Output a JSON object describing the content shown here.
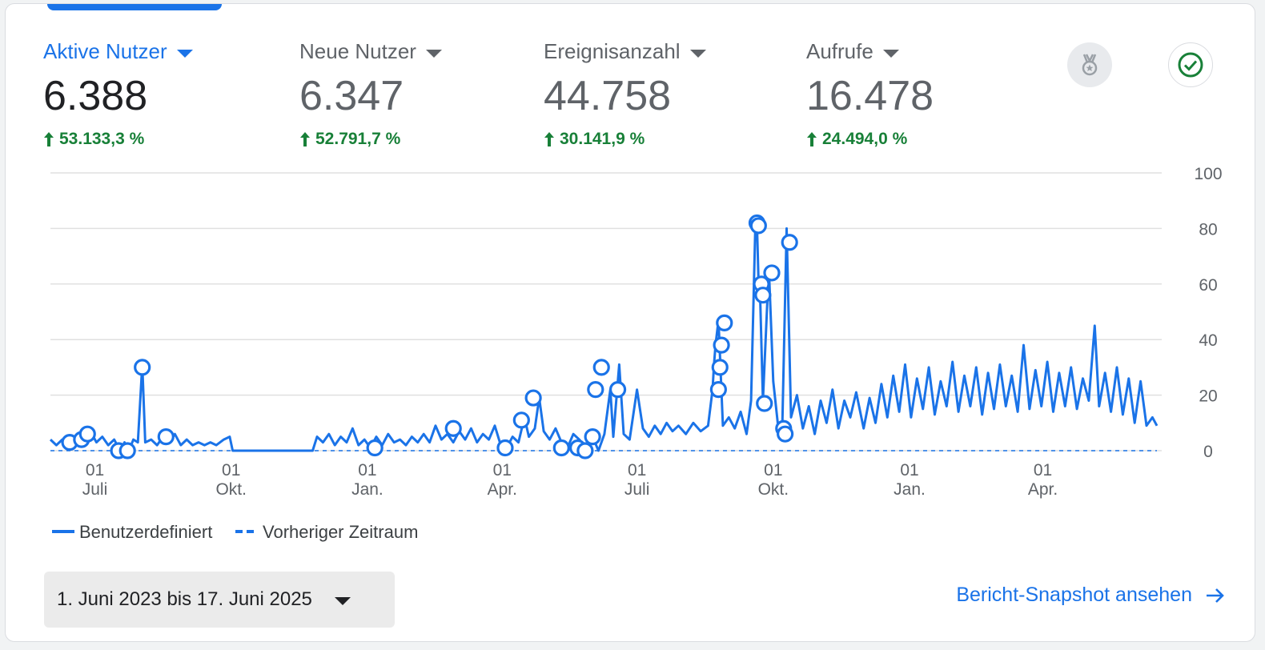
{
  "metrics": [
    {
      "label": "Aktive Nutzer",
      "value": "6.388",
      "change": "53.133,3 %"
    },
    {
      "label": "Neue Nutzer",
      "value": "6.347",
      "change": "52.791,7 %"
    },
    {
      "label": "Ereignisanzahl",
      "value": "44.758",
      "change": "30.141,9 %"
    },
    {
      "label": "Aufrufe",
      "value": "16.478",
      "change": "24.494,0 %"
    }
  ],
  "icons": {
    "badge": "medal-icon",
    "check": "check-circle-icon",
    "arrow": "arrow-right-icon",
    "trend": "arrow-up-icon"
  },
  "colors": {
    "primary": "#1a73e8",
    "positive": "#188038",
    "grid": "#e0e0e0"
  },
  "chart_data": {
    "type": "line",
    "ylim": [
      0,
      100
    ],
    "yticks": [
      "0",
      "20",
      "40",
      "60",
      "80",
      "100"
    ],
    "xlim": [
      "2023-06-01",
      "2025-06-17"
    ],
    "xticks": [
      {
        "date": "2023-07-01",
        "day": "01",
        "month": "Juli"
      },
      {
        "date": "2023-10-01",
        "day": "01",
        "month": "Okt."
      },
      {
        "date": "2024-01-01",
        "day": "01",
        "month": "Jan."
      },
      {
        "date": "2024-04-01",
        "day": "01",
        "month": "Apr."
      },
      {
        "date": "2024-07-01",
        "day": "01",
        "month": "Juli"
      },
      {
        "date": "2024-10-01",
        "day": "01",
        "month": "Okt."
      },
      {
        "date": "2025-01-01",
        "day": "01",
        "month": "Jan."
      },
      {
        "date": "2025-04-01",
        "day": "01",
        "month": "Apr."
      }
    ],
    "series": [
      {
        "name": "Benutzerdefiniert",
        "style": "solid",
        "points": [
          [
            "2023-06-01",
            4
          ],
          [
            "2023-06-05",
            2
          ],
          [
            "2023-06-09",
            4
          ],
          [
            "2023-06-13",
            2
          ],
          [
            "2023-06-16",
            4
          ],
          [
            "2023-06-20",
            6
          ],
          [
            "2023-06-24",
            4
          ],
          [
            "2023-06-28",
            7
          ],
          [
            "2023-07-02",
            3
          ],
          [
            "2023-07-06",
            5
          ],
          [
            "2023-07-10",
            2
          ],
          [
            "2023-07-14",
            4
          ],
          [
            "2023-07-18",
            0
          ],
          [
            "2023-07-21",
            3
          ],
          [
            "2023-07-24",
            0
          ],
          [
            "2023-07-27",
            4
          ],
          [
            "2023-07-30",
            3
          ],
          [
            "2023-08-02",
            31
          ],
          [
            "2023-08-04",
            3
          ],
          [
            "2023-08-08",
            4
          ],
          [
            "2023-08-12",
            2
          ],
          [
            "2023-08-16",
            5
          ],
          [
            "2023-08-20",
            3
          ],
          [
            "2023-08-24",
            6
          ],
          [
            "2023-08-28",
            2
          ],
          [
            "2023-09-01",
            4
          ],
          [
            "2023-09-05",
            2
          ],
          [
            "2023-09-09",
            3
          ],
          [
            "2023-09-13",
            2
          ],
          [
            "2023-09-17",
            3
          ],
          [
            "2023-09-21",
            2
          ],
          [
            "2023-09-26",
            4
          ],
          [
            "2023-09-30",
            5
          ],
          [
            "2023-10-02",
            0
          ],
          [
            "2023-11-25",
            0
          ],
          [
            "2023-11-28",
            5
          ],
          [
            "2023-12-02",
            3
          ],
          [
            "2023-12-06",
            6
          ],
          [
            "2023-12-10",
            2
          ],
          [
            "2023-12-14",
            5
          ],
          [
            "2023-12-18",
            3
          ],
          [
            "2023-12-22",
            8
          ],
          [
            "2023-12-26",
            2
          ],
          [
            "2023-12-30",
            4
          ],
          [
            "2024-01-03",
            1
          ],
          [
            "2024-01-07",
            5
          ],
          [
            "2024-01-11",
            2
          ],
          [
            "2024-01-15",
            6
          ],
          [
            "2024-01-19",
            3
          ],
          [
            "2024-01-23",
            4
          ],
          [
            "2024-01-27",
            2
          ],
          [
            "2024-01-31",
            5
          ],
          [
            "2024-02-04",
            3
          ],
          [
            "2024-02-08",
            6
          ],
          [
            "2024-02-12",
            3
          ],
          [
            "2024-02-16",
            9
          ],
          [
            "2024-02-20",
            4
          ],
          [
            "2024-02-24",
            6
          ],
          [
            "2024-02-28",
            3
          ],
          [
            "2024-03-03",
            7
          ],
          [
            "2024-03-07",
            4
          ],
          [
            "2024-03-11",
            8
          ],
          [
            "2024-03-15",
            3
          ],
          [
            "2024-03-19",
            6
          ],
          [
            "2024-03-23",
            4
          ],
          [
            "2024-03-27",
            9
          ],
          [
            "2024-03-31",
            2
          ],
          [
            "2024-04-04",
            1
          ],
          [
            "2024-04-08",
            5
          ],
          [
            "2024-04-12",
            3
          ],
          [
            "2024-04-16",
            12
          ],
          [
            "2024-04-19",
            5
          ],
          [
            "2024-04-23",
            8
          ],
          [
            "2024-04-26",
            19
          ],
          [
            "2024-04-29",
            7
          ],
          [
            "2024-05-03",
            4
          ],
          [
            "2024-05-07",
            8
          ],
          [
            "2024-05-11",
            3
          ],
          [
            "2024-05-15",
            1
          ],
          [
            "2024-05-19",
            6
          ],
          [
            "2024-05-23",
            4
          ],
          [
            "2024-05-28",
            1
          ],
          [
            "2024-06-01",
            5
          ],
          [
            "2024-06-05",
            0
          ],
          [
            "2024-06-09",
            6
          ],
          [
            "2024-06-13",
            22
          ],
          [
            "2024-06-15",
            5
          ],
          [
            "2024-06-19",
            31
          ],
          [
            "2024-06-22",
            6
          ],
          [
            "2024-06-26",
            4
          ],
          [
            "2024-07-01",
            22
          ],
          [
            "2024-07-05",
            8
          ],
          [
            "2024-07-09",
            5
          ],
          [
            "2024-07-13",
            9
          ],
          [
            "2024-07-17",
            6
          ],
          [
            "2024-07-21",
            10
          ],
          [
            "2024-07-25",
            7
          ],
          [
            "2024-07-29",
            9
          ],
          [
            "2024-08-03",
            6
          ],
          [
            "2024-08-08",
            10
          ],
          [
            "2024-08-13",
            7
          ],
          [
            "2024-08-18",
            9
          ],
          [
            "2024-08-21",
            22
          ],
          [
            "2024-08-22",
            31
          ],
          [
            "2024-08-23",
            38
          ],
          [
            "2024-08-25",
            47
          ],
          [
            "2024-08-28",
            9
          ],
          [
            "2024-09-01",
            12
          ],
          [
            "2024-09-05",
            8
          ],
          [
            "2024-09-09",
            14
          ],
          [
            "2024-09-13",
            6
          ],
          [
            "2024-09-16",
            18
          ],
          [
            "2024-09-19",
            83
          ],
          [
            "2024-09-20",
            81
          ],
          [
            "2024-09-21",
            62
          ],
          [
            "2024-09-22",
            58
          ],
          [
            "2024-09-24",
            18
          ],
          [
            "2024-09-28",
            66
          ],
          [
            "2024-10-01",
            25
          ],
          [
            "2024-10-04",
            10
          ],
          [
            "2024-10-06",
            9
          ],
          [
            "2024-10-07",
            6
          ],
          [
            "2024-10-10",
            80
          ],
          [
            "2024-10-13",
            12
          ],
          [
            "2024-10-17",
            20
          ],
          [
            "2024-10-21",
            8
          ],
          [
            "2024-10-25",
            16
          ],
          [
            "2024-10-29",
            6
          ],
          [
            "2024-11-02",
            18
          ],
          [
            "2024-11-06",
            10
          ],
          [
            "2024-11-10",
            22
          ],
          [
            "2024-11-14",
            8
          ],
          [
            "2024-11-18",
            18
          ],
          [
            "2024-11-22",
            12
          ],
          [
            "2024-11-26",
            21
          ],
          [
            "2024-12-01",
            8
          ],
          [
            "2024-12-05",
            19
          ],
          [
            "2024-12-09",
            10
          ],
          [
            "2024-12-13",
            24
          ],
          [
            "2024-12-17",
            12
          ],
          [
            "2024-12-21",
            27
          ],
          [
            "2024-12-25",
            14
          ],
          [
            "2024-12-29",
            31
          ],
          [
            "2025-01-02",
            12
          ],
          [
            "2025-01-06",
            26
          ],
          [
            "2025-01-10",
            15
          ],
          [
            "2025-01-14",
            30
          ],
          [
            "2025-01-18",
            13
          ],
          [
            "2025-01-22",
            25
          ],
          [
            "2025-01-26",
            16
          ],
          [
            "2025-01-30",
            32
          ],
          [
            "2025-02-03",
            14
          ],
          [
            "2025-02-07",
            27
          ],
          [
            "2025-02-11",
            16
          ],
          [
            "2025-02-15",
            30
          ],
          [
            "2025-02-19",
            13
          ],
          [
            "2025-02-23",
            28
          ],
          [
            "2025-02-27",
            15
          ],
          [
            "2025-03-03",
            31
          ],
          [
            "2025-03-07",
            16
          ],
          [
            "2025-03-11",
            27
          ],
          [
            "2025-03-15",
            14
          ],
          [
            "2025-03-19",
            38
          ],
          [
            "2025-03-23",
            15
          ],
          [
            "2025-03-27",
            29
          ],
          [
            "2025-03-31",
            16
          ],
          [
            "2025-04-04",
            32
          ],
          [
            "2025-04-08",
            14
          ],
          [
            "2025-04-12",
            28
          ],
          [
            "2025-04-16",
            16
          ],
          [
            "2025-04-20",
            30
          ],
          [
            "2025-04-24",
            15
          ],
          [
            "2025-04-28",
            26
          ],
          [
            "2025-05-02",
            18
          ],
          [
            "2025-05-06",
            45
          ],
          [
            "2025-05-09",
            16
          ],
          [
            "2025-05-13",
            28
          ],
          [
            "2025-05-17",
            14
          ],
          [
            "2025-05-21",
            30
          ],
          [
            "2025-05-25",
            13
          ],
          [
            "2025-05-29",
            26
          ],
          [
            "2025-06-02",
            10
          ],
          [
            "2025-06-06",
            25
          ],
          [
            "2025-06-10",
            9
          ],
          [
            "2025-06-14",
            12
          ],
          [
            "2025-06-17",
            9
          ]
        ],
        "markers": [
          [
            "2023-06-14",
            3
          ],
          [
            "2023-06-22",
            4
          ],
          [
            "2023-06-26",
            6
          ],
          [
            "2023-07-17",
            0
          ],
          [
            "2023-07-23",
            0
          ],
          [
            "2023-08-02",
            30
          ],
          [
            "2023-08-18",
            5
          ],
          [
            "2024-01-06",
            1
          ],
          [
            "2024-02-28",
            8
          ],
          [
            "2024-04-03",
            1
          ],
          [
            "2024-04-14",
            11
          ],
          [
            "2024-04-22",
            19
          ],
          [
            "2024-05-11",
            1
          ],
          [
            "2024-05-22",
            1
          ],
          [
            "2024-05-27",
            0
          ],
          [
            "2024-06-01",
            5
          ],
          [
            "2024-06-03",
            22
          ],
          [
            "2024-06-07",
            30
          ],
          [
            "2024-06-18",
            22
          ],
          [
            "2024-08-25",
            22
          ],
          [
            "2024-08-26",
            30
          ],
          [
            "2024-08-27",
            38
          ],
          [
            "2024-08-29",
            46
          ],
          [
            "2024-09-20",
            82
          ],
          [
            "2024-09-21",
            81
          ],
          [
            "2024-09-23",
            60
          ],
          [
            "2024-09-24",
            56
          ],
          [
            "2024-09-25",
            17
          ],
          [
            "2024-09-30",
            64
          ],
          [
            "2024-10-08",
            8
          ],
          [
            "2024-10-09",
            6
          ],
          [
            "2024-10-12",
            75
          ]
        ]
      },
      {
        "name": "Vorheriger Zeitraum",
        "style": "dashed",
        "points": [
          [
            "2023-06-01",
            0
          ],
          [
            "2025-06-17",
            0
          ]
        ]
      }
    ]
  },
  "legend": [
    {
      "label": "Benutzerdefiniert",
      "style": "solid"
    },
    {
      "label": "Vorheriger Zeitraum",
      "style": "dashed"
    }
  ],
  "date_range": "1. Juni 2023 bis 17. Juni 2025",
  "snapshot_link": "Bericht-Snapshot ansehen"
}
